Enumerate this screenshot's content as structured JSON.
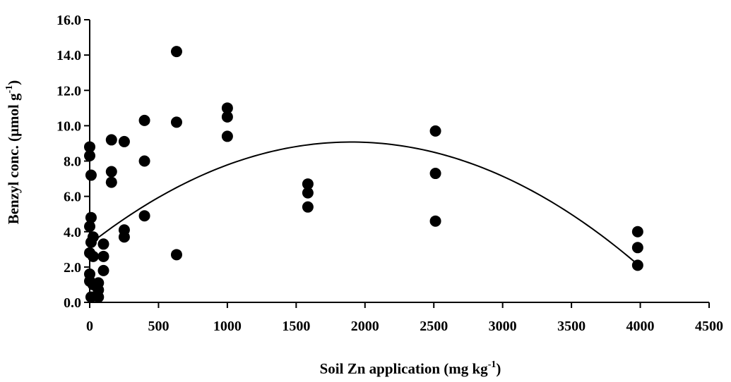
{
  "chart_data": {
    "type": "scatter",
    "xlabel": {
      "main": "Soil Zn application (mg kg",
      "sup": "-1",
      "end": ")"
    },
    "ylabel": {
      "main": "Benzyl conc. (µmol g",
      "sup": "-1",
      "end": ")"
    },
    "xlim": [
      0,
      4500
    ],
    "ylim": [
      0,
      16
    ],
    "x_ticks": [
      0,
      500,
      1000,
      1500,
      2000,
      2500,
      3000,
      3500,
      4000,
      4500
    ],
    "x_tick_labels": [
      "0",
      "500",
      "1000",
      "1500",
      "2000",
      "2500",
      "3000",
      "3500",
      "4000",
      "4500"
    ],
    "y_ticks": [
      0,
      2,
      4,
      6,
      8,
      10,
      12,
      14,
      16
    ],
    "y_tick_labels": [
      "0.0",
      "2.0",
      "4.0",
      "6.0",
      "8.0",
      "10.0",
      "12.0",
      "14.0",
      "16.0"
    ],
    "grid": false,
    "legend": "none",
    "marker_color": "#000000",
    "line_color": "#000000",
    "points": [
      {
        "x": 0,
        "y": 8.8
      },
      {
        "x": 0,
        "y": 8.3
      },
      {
        "x": 0,
        "y": 4.3
      },
      {
        "x": 0,
        "y": 2.8
      },
      {
        "x": 0,
        "y": 1.6
      },
      {
        "x": 0,
        "y": 1.2
      },
      {
        "x": 10,
        "y": 7.2
      },
      {
        "x": 10,
        "y": 4.8
      },
      {
        "x": 10,
        "y": 3.4
      },
      {
        "x": 10,
        "y": 0.3
      },
      {
        "x": 25,
        "y": 3.7
      },
      {
        "x": 25,
        "y": 2.6
      },
      {
        "x": 25,
        "y": 1.0
      },
      {
        "x": 63,
        "y": 1.1
      },
      {
        "x": 63,
        "y": 0.7
      },
      {
        "x": 63,
        "y": 0.3
      },
      {
        "x": 100,
        "y": 3.3
      },
      {
        "x": 100,
        "y": 2.6
      },
      {
        "x": 100,
        "y": 1.8
      },
      {
        "x": 158,
        "y": 9.2
      },
      {
        "x": 158,
        "y": 7.4
      },
      {
        "x": 158,
        "y": 6.8
      },
      {
        "x": 251,
        "y": 9.1
      },
      {
        "x": 251,
        "y": 4.1
      },
      {
        "x": 251,
        "y": 3.7
      },
      {
        "x": 398,
        "y": 10.3
      },
      {
        "x": 398,
        "y": 8.0
      },
      {
        "x": 398,
        "y": 4.9
      },
      {
        "x": 631,
        "y": 14.2
      },
      {
        "x": 631,
        "y": 10.2
      },
      {
        "x": 631,
        "y": 2.7
      },
      {
        "x": 1000,
        "y": 11.0
      },
      {
        "x": 1000,
        "y": 10.5
      },
      {
        "x": 1000,
        "y": 9.4
      },
      {
        "x": 1585,
        "y": 6.7
      },
      {
        "x": 1585,
        "y": 6.2
      },
      {
        "x": 1585,
        "y": 5.4
      },
      {
        "x": 2512,
        "y": 9.7
      },
      {
        "x": 2512,
        "y": 7.3
      },
      {
        "x": 2512,
        "y": 4.6
      },
      {
        "x": 3981,
        "y": 4.0
      },
      {
        "x": 3981,
        "y": 3.1
      },
      {
        "x": 3981,
        "y": 2.1
      }
    ],
    "trendline": {
      "type": "quadratic",
      "x_range": [
        0,
        3981
      ],
      "coefficients": {
        "a": -1.6e-06,
        "b": 0.00608,
        "c": 3.3
      }
    }
  }
}
